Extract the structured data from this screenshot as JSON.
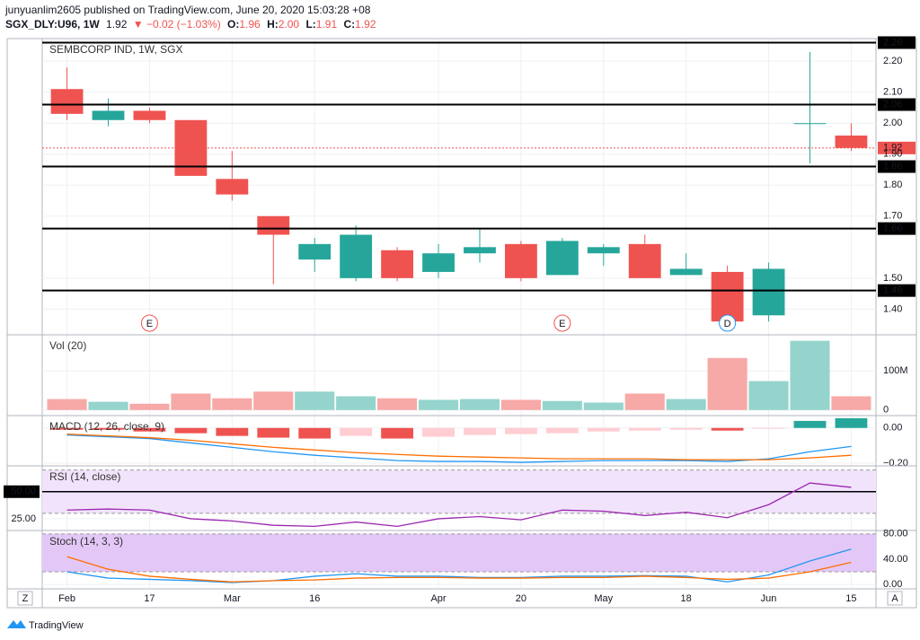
{
  "header": {
    "byline": "junyuanlim2605 published on TradingView.com, June 20, 2020 15:03:28 +08",
    "symbol": "SGX_DLY:U96, 1W",
    "last": "1.92",
    "change": "▼ −0.02 (−1.03%)",
    "ohlc": [
      {
        "key": "O:",
        "value": "1.96"
      },
      {
        "key": "H:",
        "value": "2.00"
      },
      {
        "key": "L:",
        "value": "1.91"
      },
      {
        "key": "C:",
        "value": "1.92"
      }
    ]
  },
  "footer": {
    "brand": "TradingView",
    "left_button": "Z",
    "right_button": "A"
  },
  "chart_data": [
    {
      "type": "candlestick",
      "title": "SEMBCORP IND, 1W, SGX",
      "categories": [
        "Feb",
        null,
        "17",
        null,
        "Mar",
        null,
        "16",
        null,
        null,
        "Apr",
        null,
        "20",
        null,
        "May",
        null,
        "18",
        null,
        "Jun",
        null,
        "15"
      ],
      "open": [
        2.11,
        2.01,
        2.04,
        2.01,
        1.82,
        1.7,
        1.56,
        1.5,
        1.59,
        1.52,
        1.58,
        1.61,
        1.51,
        1.58,
        1.61,
        1.51,
        1.52,
        1.38,
        2.0,
        1.96
      ],
      "high": [
        2.18,
        2.08,
        2.05,
        2.01,
        1.91,
        1.7,
        1.63,
        1.67,
        1.6,
        1.61,
        1.66,
        1.62,
        1.63,
        1.61,
        1.64,
        1.58,
        1.54,
        1.55,
        2.23,
        2.0
      ],
      "low": [
        2.01,
        1.99,
        2.0,
        1.83,
        1.75,
        1.48,
        1.52,
        1.49,
        1.49,
        1.5,
        1.55,
        1.49,
        1.51,
        1.54,
        1.5,
        1.51,
        1.36,
        1.36,
        1.87,
        1.91
      ],
      "close": [
        2.03,
        2.04,
        2.01,
        1.83,
        1.77,
        1.64,
        1.61,
        1.64,
        1.5,
        1.58,
        1.6,
        1.5,
        1.62,
        1.6,
        1.5,
        1.53,
        1.36,
        1.53,
        2.0,
        1.92
      ],
      "up_color": "#26a69a",
      "down_color": "#ef5350",
      "ylim": [
        1.32,
        2.27
      ],
      "yticks": [
        {
          "value": 1.4,
          "label": "1.40"
        },
        {
          "value": 1.5,
          "label": "1.50"
        },
        {
          "value": 1.7,
          "label": "1.70"
        },
        {
          "value": 1.8,
          "label": "1.80"
        },
        {
          "value": 1.9,
          "label": "1.90"
        },
        {
          "value": 2.0,
          "label": "2.00"
        },
        {
          "value": 2.1,
          "label": "2.10"
        },
        {
          "value": 2.2,
          "label": "2.20"
        }
      ],
      "grid": true,
      "hlines": [
        {
          "value": 2.26,
          "label": "2.26"
        },
        {
          "value": 2.06,
          "label": "2.06"
        },
        {
          "value": 1.86,
          "label": "1.86"
        },
        {
          "value": 1.66,
          "label": "1.66"
        },
        {
          "value": 1.46,
          "label": "1.46"
        }
      ],
      "last_price": {
        "value": 1.92,
        "label": "1.92",
        "color": "#ef5350"
      },
      "events": [
        null,
        null,
        {
          "label": "E",
          "color": "#ef5350"
        },
        null,
        null,
        null,
        null,
        null,
        null,
        null,
        null,
        null,
        {
          "label": "E",
          "color": "#ef5350"
        },
        null,
        null,
        null,
        {
          "label": "D",
          "color": "#2196f3"
        },
        null,
        null,
        null
      ]
    },
    {
      "type": "bar",
      "title": "Vol (20)",
      "values": [
        28,
        21,
        16,
        42,
        30,
        47,
        47,
        35,
        30,
        26,
        28,
        26,
        23,
        19,
        42,
        28,
        133,
        74,
        177,
        35
      ],
      "colors": [
        "#f7a9a7",
        "#94d4cc",
        "#f7a9a7",
        "#f7a9a7",
        "#f7a9a7",
        "#f7a9a7",
        "#94d4cc",
        "#94d4cc",
        "#f7a9a7",
        "#94d4cc",
        "#94d4cc",
        "#f7a9a7",
        "#94d4cc",
        "#94d4cc",
        "#f7a9a7",
        "#94d4cc",
        "#f7a9a7",
        "#94d4cc",
        "#94d4cc",
        "#f7a9a7"
      ],
      "ylim": [
        -12,
        190
      ],
      "yticks": [
        0,
        {
          "value": 100,
          "label": "100M"
        }
      ],
      "grid": true
    },
    {
      "type": "macd",
      "title": "MACD (12, 26, close, 9)",
      "histogram": [
        -0.01,
        -0.01,
        -0.02,
        -0.03,
        -0.045,
        -0.055,
        -0.06,
        -0.045,
        -0.06,
        -0.05,
        -0.04,
        -0.035,
        -0.03,
        -0.02,
        -0.015,
        -0.01,
        -0.015,
        -0.005,
        0.04,
        0.055
      ],
      "histogram_colors": [
        "#ef5350",
        "#ef5350",
        "#ef5350",
        "#ef5350",
        "#ef5350",
        "#ef5350",
        "#ef5350",
        "#ffcdd2",
        "#ef5350",
        "#ffcdd2",
        "#ffcdd2",
        "#ffcdd2",
        "#ffcdd2",
        "#ffcdd2",
        "#ffcdd2",
        "#ffcdd2",
        "#ef5350",
        "#ffcdd2",
        "#26a69a",
        "#26a69a"
      ],
      "macd": {
        "color": "#2196f3",
        "values": [
          -0.04,
          -0.05,
          -0.06,
          -0.085,
          -0.11,
          -0.135,
          -0.155,
          -0.17,
          -0.185,
          -0.19,
          -0.19,
          -0.195,
          -0.19,
          -0.185,
          -0.185,
          -0.185,
          -0.19,
          -0.175,
          -0.135,
          -0.105
        ]
      },
      "signal": {
        "color": "#ff6d00",
        "values": [
          -0.035,
          -0.045,
          -0.055,
          -0.07,
          -0.09,
          -0.11,
          -0.125,
          -0.14,
          -0.15,
          -0.16,
          -0.165,
          -0.17,
          -0.175,
          -0.175,
          -0.175,
          -0.18,
          -0.18,
          -0.18,
          -0.17,
          -0.155
        ]
      },
      "ylim": [
        -0.21,
        0.065
      ],
      "yticks": [
        {
          "value": 0,
          "label": "0.00"
        },
        {
          "value": -0.2,
          "label": "−0.20"
        }
      ],
      "grid": true
    },
    {
      "type": "line",
      "title": "RSI (14, close)",
      "values": [
        33,
        34,
        33,
        25,
        23,
        19,
        18,
        22,
        18,
        25,
        27,
        24,
        33,
        32,
        28,
        31,
        26,
        38,
        58,
        54
      ],
      "color": "#9c27b0",
      "band": [
        30,
        70
      ],
      "band_color": "#f1e3fb",
      "ylim": [
        15,
        73
      ],
      "yaxis_side": "left",
      "hline": {
        "value": 50,
        "label": "50.00"
      },
      "yticks": [
        {
          "value": 25,
          "label": "25.00"
        }
      ],
      "grid": true
    },
    {
      "type": "stoch",
      "title": "Stoch (14, 3, 3)",
      "k": {
        "color": "#2196f3",
        "values": [
          20,
          10,
          8,
          6,
          3,
          6,
          13,
          17,
          13,
          13,
          11,
          11,
          13,
          13,
          14,
          13,
          4,
          15,
          37,
          56
        ]
      },
      "d": {
        "color": "#ff6d00",
        "values": [
          44,
          24,
          13,
          8,
          4,
          6,
          7,
          10,
          11,
          11,
          10,
          10,
          11,
          11,
          13,
          11,
          8,
          10,
          20,
          35
        ]
      },
      "band": [
        20,
        80
      ],
      "band_color": "#e3c8f7",
      "ylim": [
        -7,
        84
      ],
      "yticks": [
        {
          "value": 80,
          "label": "80.00"
        },
        {
          "value": 40,
          "label": "40.00"
        },
        {
          "value": 0,
          "label": "0.00"
        }
      ],
      "grid": true
    }
  ]
}
